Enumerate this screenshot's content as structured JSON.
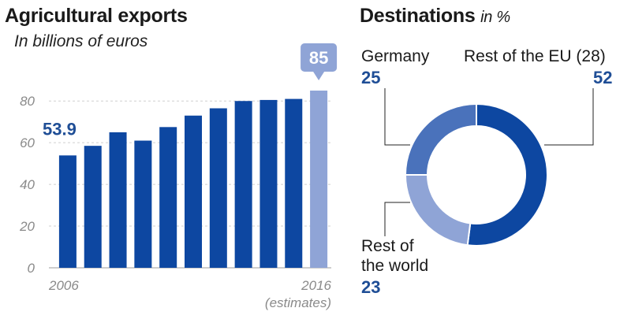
{
  "left": {
    "title": "Agricultural exports",
    "subtitle": "In billions of euros"
  },
  "right": {
    "title": "Destinations",
    "title_unit": "in %"
  },
  "chart_data": [
    {
      "type": "bar",
      "title": "Agricultural exports",
      "subtitle": "In billions of euros",
      "x": [
        2006,
        2007,
        2008,
        2009,
        2010,
        2011,
        2012,
        2013,
        2014,
        2015,
        2016
      ],
      "values": [
        53.9,
        58.5,
        65,
        61,
        67.5,
        73,
        76.5,
        80,
        80.5,
        81,
        85
      ],
      "ylim": [
        0,
        85
      ],
      "yticks": [
        0,
        20,
        40,
        60,
        80
      ],
      "x_tick_labels": [
        {
          "year": 2006,
          "label": "2006",
          "sublabel": ""
        },
        {
          "year": 2016,
          "label": "2016",
          "sublabel": "(estimates)"
        }
      ],
      "labeled_points": [
        {
          "year": 2006,
          "label": "53.9"
        },
        {
          "year": 2016,
          "label": "85"
        }
      ],
      "colors": {
        "bar": "#0d47a1",
        "estimate": "#8fa4d6",
        "grid": "#cfcfcf"
      },
      "grid": true
    },
    {
      "type": "pie",
      "title": "Destinations",
      "subtitle": "in %",
      "donut": true,
      "slices": [
        {
          "label": "Rest of the EU (28)",
          "value": 52,
          "color": "#0d47a1"
        },
        {
          "label": "Rest of the world",
          "value": 23,
          "color": "#8fa4d6"
        },
        {
          "label": "Germany",
          "value": 25,
          "color": "#4a72bb"
        }
      ]
    }
  ],
  "pie_labels": {
    "germany": {
      "name": "Germany",
      "value": "25"
    },
    "eu": {
      "name": "Rest of the EU (28)",
      "value": "52"
    },
    "world": {
      "name_line1": "Rest of",
      "name_line2": "the world",
      "value": "23"
    }
  }
}
